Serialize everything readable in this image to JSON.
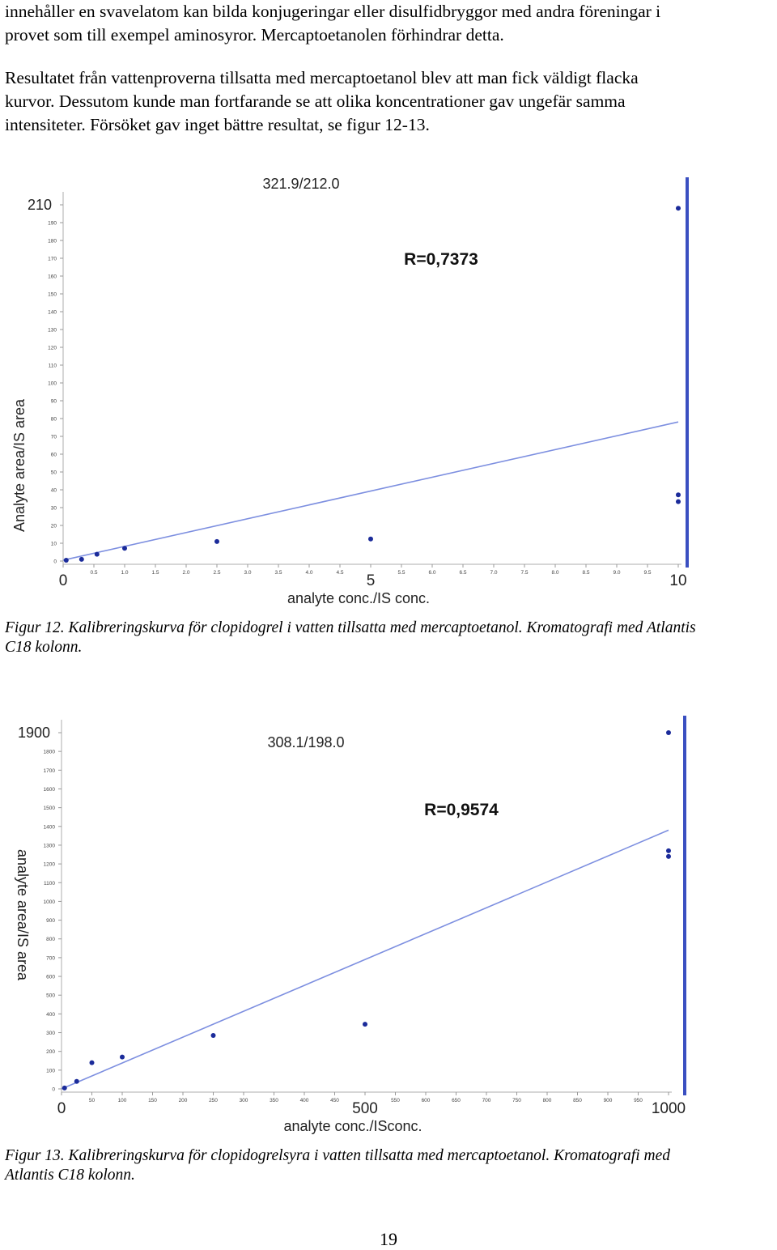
{
  "text": {
    "para1_lines": [
      "innehåller en svavelatom kan bilda konjugeringar eller disulfidbryggor med andra föreningar i",
      "provet som till exempel aminosyror. Mercaptoetanolen förhindrar detta."
    ],
    "para2_lines": [
      "Resultatet från vattenproverna tillsatta med mercaptoetanol blev att man fick väldigt flacka",
      "kurvor. Dessutom kunde man fortfarande se att olika koncentrationer gav ungefär samma",
      "intensiteter. Försöket gav inget bättre resultat, se figur 12-13."
    ],
    "caption12_lines": [
      "Figur 12. Kalibreringskurva för clopidogrel i vatten tillsatta med mercaptoetanol. Kromatografi med Atlantis",
      "C18 kolonn."
    ],
    "caption13_lines": [
      "Figur 13. Kalibreringskurva för clopidogrelsyra i vatten tillsatta med mercaptoetanol. Kromatografi med",
      "Atlantis C18 kolonn."
    ],
    "page_number": "19"
  },
  "chart_data": [
    {
      "type": "scatter",
      "title": "321.9/212.0",
      "annotation": "R=0,7373",
      "xlabel": "analyte conc./IS conc.",
      "ylabel": "Analyte area/IS area",
      "xlim": [
        0,
        10
      ],
      "ylim": [
        0,
        210
      ],
      "x_ticks": [
        "0",
        "0.5",
        "1.0",
        "1.5",
        "2.0",
        "2.5",
        "3.0",
        "3.5",
        "4.0",
        "4.5",
        "5",
        "5.5",
        "6.0",
        "6.5",
        "7.0",
        "7.5",
        "8.0",
        "8.5",
        "9.0",
        "9.5",
        "10"
      ],
      "y_ticks": [
        "0",
        "10",
        "20",
        "30",
        "40",
        "50",
        "60",
        "70",
        "80",
        "90",
        "100",
        "110",
        "120",
        "130",
        "140",
        "150",
        "160",
        "170",
        "180",
        "190",
        "210"
      ],
      "points": [
        {
          "x": 0.05,
          "y": 0.5
        },
        {
          "x": 0.3,
          "y": 1.0
        },
        {
          "x": 0.55,
          "y": 4.0
        },
        {
          "x": 1.0,
          "y": 7.5
        },
        {
          "x": 2.5,
          "y": 11.5
        },
        {
          "x": 5.0,
          "y": 13.0
        },
        {
          "x": 10.0,
          "y": 35.0
        },
        {
          "x": 10.0,
          "y": 39.0
        },
        {
          "x": 10.0,
          "y": 208.0
        }
      ],
      "fit_line": {
        "x": [
          0,
          10
        ],
        "y": [
          0.5,
          82
        ]
      },
      "grid": false
    },
    {
      "type": "scatter",
      "title": "308.1/198.0",
      "annotation": "R=0,9574",
      "xlabel": "analyte conc./ISconc.",
      "ylabel": "analyte area/IS area",
      "xlim": [
        0,
        1000
      ],
      "ylim": [
        0,
        1900
      ],
      "x_ticks": [
        "0",
        "50",
        "100",
        "150",
        "200",
        "250",
        "300",
        "350",
        "400",
        "450",
        "500",
        "550",
        "600",
        "650",
        "700",
        "750",
        "800",
        "850",
        "900",
        "950",
        "1000"
      ],
      "y_ticks": [
        "0",
        "100",
        "200",
        "300",
        "400",
        "500",
        "600",
        "700",
        "800",
        "900",
        "1000",
        "1100",
        "1200",
        "1300",
        "1400",
        "1500",
        "1600",
        "1700",
        "1800",
        "1900"
      ],
      "points": [
        {
          "x": 5,
          "y": 5
        },
        {
          "x": 25,
          "y": 40
        },
        {
          "x": 50,
          "y": 140
        },
        {
          "x": 100,
          "y": 170
        },
        {
          "x": 250,
          "y": 285
        },
        {
          "x": 500,
          "y": 345
        },
        {
          "x": 1000,
          "y": 1240
        },
        {
          "x": 1000,
          "y": 1270
        },
        {
          "x": 1000,
          "y": 1900
        }
      ],
      "fit_line": {
        "x": [
          0,
          1000
        ],
        "y": [
          0,
          1380
        ]
      },
      "grid": false
    }
  ]
}
